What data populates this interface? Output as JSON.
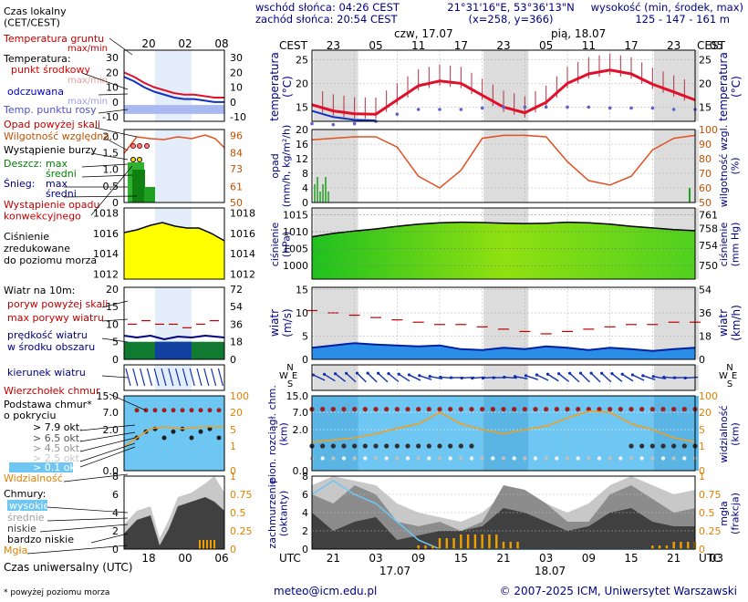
{
  "header": {
    "local_time_title": "Czas lokalny\n(CET/CEST)",
    "sunrise": "wschód słońca: 04:26 CEST",
    "sunset": "zachód słońca: 20:54 CEST",
    "coords": "21°31'16\"E, 53°36'13\"N",
    "grid": "(x=258, y=366)",
    "elevation_title": "wysokość (min, środek, max)",
    "elevation_values": "125 - 147 - 161 m",
    "cest_left": "CEST",
    "cest_right": "CEST",
    "day1": "czw, 17.07",
    "day2": "pią, 18.07"
  },
  "top_hours": [
    "23",
    "05",
    "11",
    "17",
    "23",
    "05",
    "11",
    "17",
    "23",
    "05"
  ],
  "legend_hours_top": [
    "20",
    "02",
    "08"
  ],
  "bottom_hours": [
    "21",
    "03",
    "09",
    "15",
    "21",
    "03",
    "09",
    "15",
    "21",
    "03"
  ],
  "legend_hours_bottom": [
    "18",
    "00",
    "06"
  ],
  "footer": {
    "utc_left": "UTC",
    "utc_right": "UTC",
    "date1": "17.07",
    "date2": "18.07",
    "universal_time": "Czas uniwersalny (UTC)",
    "footnote": "* powyżej poziomu morza",
    "email": "meteo@icm.edu.pl",
    "copyright": "© 2007-2025 ICM, Uniwersytet Warszawski"
  },
  "legend": {
    "soil_temp": "Temperatura gruntu",
    "maxmin": "max/min",
    "temperature": "Temperatura:",
    "midpoint": "punkt środkowy",
    "maxmin2": "max/min",
    "perceived": "odczuwana",
    "maxmin3": "max/min",
    "dewpoint": "Temp. punktu rosy",
    "precip_above": "Opad powyżej skali",
    "humidity": "Wilgotność względna",
    "storm": "Wystąpienie burzy",
    "rain": "Deszcz:",
    "rain_max": "max",
    "rain_mean": "średni",
    "snow": "Śnieg:",
    "snow_max": "max",
    "snow_mean": "średni",
    "convective": "Wystąpienie opadu\nkonwekcyjnego",
    "pressure": "Ciśnienie\nzredukowane\ndo poziomu morza",
    "wind10": "Wiatr na 10m:",
    "gust_above": "poryw powyżej skali",
    "max_gust": "max porywy wiatru",
    "wind_speed": "prędkość wiatru\nw środku obszaru",
    "wind_dir": "kierunek wiatru",
    "cloud_top": "Wierzchołek chmur",
    "cloud_base": "Podstawa chmur*\no pokryciu",
    "okt1": "> 7.9 okt.",
    "okt2": "> 6.5 okt.",
    "okt3": "> 4.5 okt.",
    "okt4": "> 2.5 okt.",
    "okt5": "> 0.1 okt.",
    "visibility": "Widzialność",
    "clouds": "Chmury:",
    "high": "wysokie",
    "mid": "średnie",
    "low": "niskie",
    "very_low": "bardzo niskie",
    "fog": "Mgła"
  },
  "axis_labels": {
    "temp_left": "temperatura\n(°C)",
    "temp_right": "temperatura\n(°C)",
    "precip_left": "opad\n(mm/h, kg/m²/h)",
    "precip_right": "wilgotność wzgl.\n(%)",
    "pressure_left": "ciśnienie\n(hPa)",
    "pressure_right": "ciśnienie\n(mm Hg)",
    "wind_left": "wiatr\n(m/s)",
    "wind_right": "wiatr\n(km/h)",
    "cloud_left": "pion. rozciągł. chm.\n(km)",
    "cloud_right": "widzialność\n(km)",
    "cover_left": "zachmurzenie\n(oktanty)",
    "cover_right": "mgła\n(frakcja)",
    "wind_dir_letters": [
      "N",
      "W",
      "E",
      "S"
    ]
  },
  "ticks": {
    "legend_temp": [
      "30",
      "20",
      "10",
      "0",
      "-10"
    ],
    "legend_temp_r": [
      "30",
      "20",
      "10",
      "0",
      "-10"
    ],
    "main_temp": [
      "25",
      "20",
      "15"
    ],
    "main_temp_r": [
      "25",
      "20",
      "15"
    ],
    "legend_precip": [
      "2.0",
      "1.5",
      "1.0",
      "0.5",
      "0"
    ],
    "legend_hum": [
      "96",
      "84",
      "73",
      "61",
      "50"
    ],
    "main_precip": [
      "20",
      "16",
      "12",
      "8",
      "4",
      "0"
    ],
    "main_hum": [
      "100",
      "90",
      "80",
      "70",
      "60",
      "50"
    ],
    "legend_pres": [
      "1018",
      "1016",
      "1014",
      "1012"
    ],
    "legend_pres_r": [
      "1018",
      "1016",
      "1014",
      "1012"
    ],
    "main_pres": [
      "1015",
      "1010",
      "1005",
      "1000"
    ],
    "main_pres_r": [
      "761",
      "758",
      "754",
      "750"
    ],
    "legend_wind": [
      "20",
      "15",
      "10",
      "5",
      "0"
    ],
    "legend_wind_r": [
      "72",
      "54",
      "36",
      "18",
      "0"
    ],
    "main_wind": [
      "15",
      "10",
      "5",
      "0"
    ],
    "main_wind_r": [
      "54",
      "36",
      "18",
      "0"
    ],
    "legend_cloud": [
      "15.0",
      "7.0",
      "2.0",
      "0.0"
    ],
    "legend_vis": [
      "100",
      "20",
      "5",
      "1",
      "0"
    ],
    "main_cloud": [
      "15.0",
      "7.0",
      "2.0",
      "0.0"
    ],
    "main_vis": [
      "100",
      "20",
      "5",
      "1",
      "0"
    ],
    "legend_cov": [
      "8",
      "6",
      "4",
      "2",
      "0"
    ],
    "legend_fog": [
      "1",
      "0.75",
      "0.5",
      "0.25",
      "0"
    ],
    "main_cov": [
      "8",
      "6",
      "4",
      "2",
      "0"
    ],
    "main_fog": [
      "1",
      "0.75",
      "0.5",
      "0.25",
      "0"
    ]
  },
  "chart_data": {
    "type": "line",
    "x_hours": [
      0,
      3,
      6,
      9,
      12,
      15,
      18,
      21,
      24,
      27,
      30,
      33,
      36,
      39,
      42,
      45,
      48,
      51,
      54
    ],
    "temperature": [
      15.5,
      14.2,
      13.6,
      13.5,
      16.5,
      19.5,
      20.5,
      20.0,
      17.5,
      15.0,
      13.8,
      16.0,
      20.0,
      22.0,
      22.8,
      22.0,
      19.8,
      18.2,
      16.5
    ],
    "dewpoint": [
      11.5,
      11.3,
      11.5,
      12.0,
      13.5,
      14.5,
      14.5,
      14.5,
      14.8,
      15.0,
      15.0,
      15.0,
      15.0,
      15.0,
      14.8,
      14.8,
      14.8,
      14.5,
      14.5
    ],
    "humidity": [
      93,
      94,
      95,
      95,
      88,
      68,
      60,
      72,
      94,
      96,
      96,
      95,
      78,
      65,
      62,
      68,
      86,
      94,
      96
    ],
    "pressure": [
      1008.5,
      1009.5,
      1010.2,
      1010.8,
      1011.6,
      1012.2,
      1012.6,
      1012.8,
      1012.7,
      1012.5,
      1012.4,
      1012.5,
      1012.8,
      1012.6,
      1012.2,
      1011.6,
      1011.1,
      1010.6,
      1010.3
    ],
    "wind_speed": [
      2.5,
      3.0,
      3.5,
      3.2,
      3.0,
      2.8,
      3.0,
      2.2,
      2.0,
      2.5,
      2.2,
      2.8,
      2.5,
      2.0,
      2.5,
      2.2,
      1.8,
      2.2,
      2.5
    ],
    "wind_gust": [
      10.5,
      10.0,
      9.5,
      9.0,
      8.5,
      8.0,
      7.5,
      7.5,
      7.0,
      6.5,
      6.0,
      5.5,
      6.0,
      6.5,
      7.0,
      7.5,
      7.5,
      8.0,
      8.0
    ],
    "visibility_km": [
      2.0,
      2.5,
      3.0,
      4.0,
      6.0,
      10.0,
      20.0,
      10.0,
      5.0,
      4.0,
      5.0,
      8.0,
      15.0,
      25.0,
      20.0,
      10.0,
      5.0,
      3.0,
      2.0
    ],
    "fog_fraction": [
      0,
      0,
      0,
      0,
      0,
      0.05,
      0.15,
      0.2,
      0.2,
      0.1,
      0,
      0,
      0,
      0,
      0,
      0,
      0.05,
      0.1,
      0.15
    ]
  }
}
